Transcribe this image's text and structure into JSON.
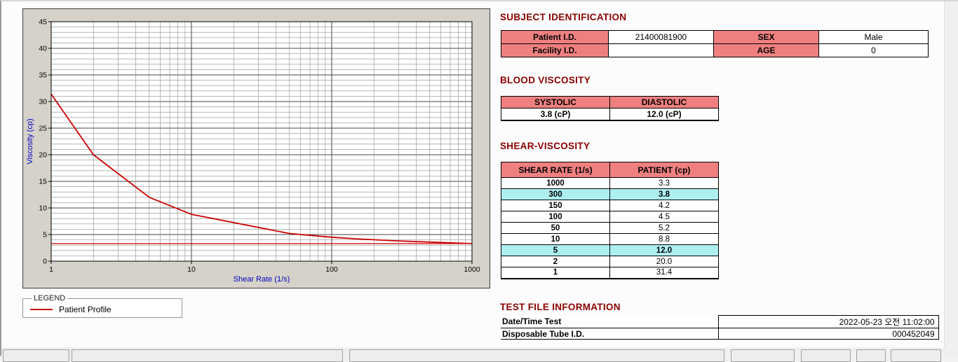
{
  "colors": {
    "heading": "#8b0000",
    "table_label_bg": "#f08080",
    "highlight_bg": "#aef0f0",
    "profile_line": "#cc0000",
    "axis_title": "#0000bf"
  },
  "chart_data": {
    "type": "line",
    "title": "",
    "xlabel": "Shear Rate (1/s)",
    "ylabel": "Viscosity (cp)",
    "xscale": "log",
    "xlim": [
      1,
      1000
    ],
    "ylim": [
      0,
      45
    ],
    "xticks": [
      1,
      10,
      100,
      1000
    ],
    "yticks": [
      0,
      5,
      10,
      15,
      20,
      25,
      30,
      35,
      40,
      45
    ],
    "grid": "on",
    "line_color": "#cc0000",
    "x": [
      1,
      2,
      5,
      10,
      50,
      100,
      150,
      300,
      1000
    ],
    "series": [
      {
        "name": "Patient Profile",
        "values": [
          31.4,
          20.0,
          12.0,
          8.8,
          5.2,
          4.5,
          4.2,
          3.8,
          3.3
        ],
        "width": 1.8
      },
      {
        "name": "baseline",
        "values": [
          3.3,
          3.3,
          3.3,
          3.3,
          3.3,
          3.3,
          3.3,
          3.3,
          3.3
        ],
        "width": 1.2
      }
    ]
  },
  "legend": {
    "title": "LEGEND",
    "series_label": "Patient Profile",
    "line_color": "#cc0000"
  },
  "subject": {
    "heading": "SUBJECT IDENTIFICATION",
    "patient_id_label": "Patient I.D.",
    "patient_id": "21400081900",
    "sex_label": "SEX",
    "sex": "Male",
    "facility_id_label": "Facility I.D.",
    "facility_id": "",
    "age_label": "AGE",
    "age": "0"
  },
  "blood_viscosity": {
    "heading": "BLOOD VISCOSITY",
    "systolic_label": "SYSTOLIC",
    "diastolic_label": "DIASTOLIC",
    "systolic": "3.8 (cP)",
    "diastolic": "12.0 (cP)"
  },
  "shear_viscosity": {
    "heading": "SHEAR-VISCOSITY",
    "col1": "SHEAR RATE (1/s)",
    "col2": "PATIENT (cp)",
    "rows": [
      {
        "rate": "1000",
        "value": "3.3"
      },
      {
        "rate": "300",
        "value": "3.8"
      },
      {
        "rate": "150",
        "value": "4.2"
      },
      {
        "rate": "100",
        "value": "4.5"
      },
      {
        "rate": "50",
        "value": "5.2"
      },
      {
        "rate": "10",
        "value": "8.8"
      },
      {
        "rate": "5",
        "value": "12.0"
      },
      {
        "rate": "2",
        "value": "20.0"
      },
      {
        "rate": "1",
        "value": "31.4"
      }
    ]
  },
  "test_file": {
    "heading": "TEST FILE INFORMATION",
    "date_label": "Date/Time Test",
    "date_value": "2022-05-23   오전 11:02:00",
    "tube_label": "Disposable Tube I.D.",
    "tube_value": "000452049"
  }
}
